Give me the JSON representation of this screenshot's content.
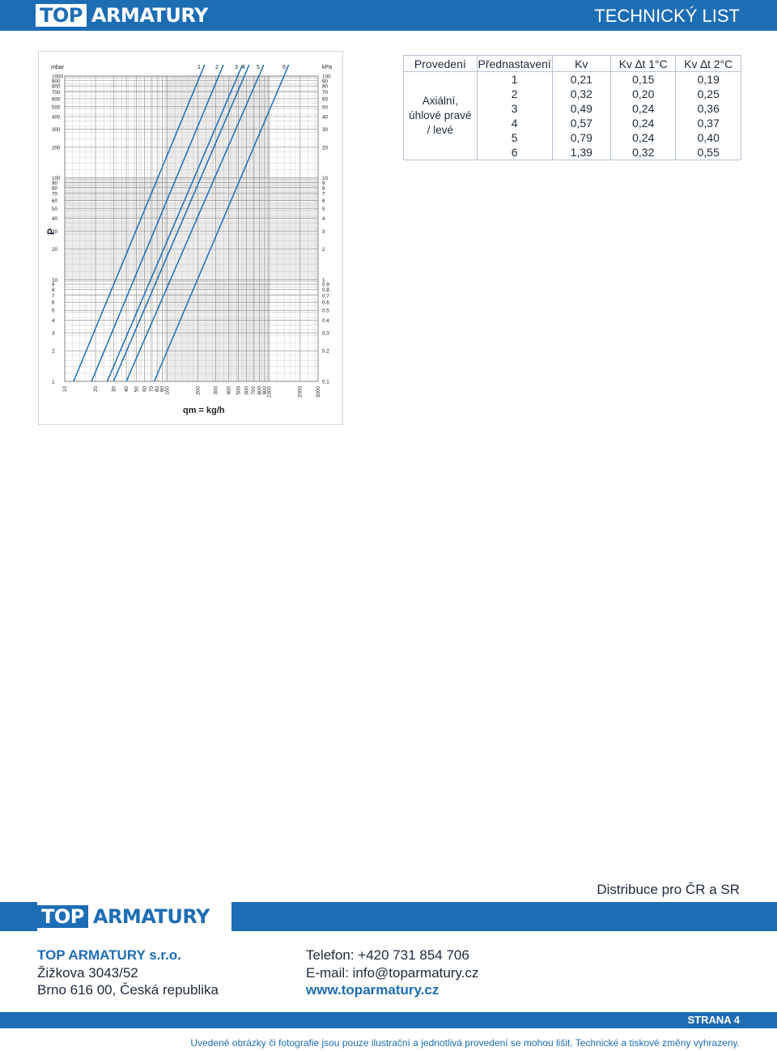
{
  "header": {
    "logo_top": "TOP",
    "logo_armatury": "ARMATURY",
    "title": "TECHNICKÝ LIST"
  },
  "colors": {
    "brand_blue": "#1d6db5",
    "text_dark": "#1e2a3a",
    "curve_blue": "#1d6db5"
  },
  "chart": {
    "left_unit": "mbar",
    "right_unit": "kPa",
    "y_axis_label": "P",
    "x_axis_label": "qm = kg/h",
    "curve_labels": [
      "1",
      "2",
      "3",
      "4",
      "5",
      "6"
    ],
    "left_ticks": [
      "1000",
      "900",
      "800",
      "700",
      "600",
      "500",
      "400",
      "300",
      "200",
      "100",
      "90",
      "80",
      "70",
      "60",
      "50",
      "40",
      "30",
      "20",
      "10",
      "9",
      "8",
      "7",
      "6",
      "5",
      "4",
      "3",
      "2",
      "1"
    ],
    "right_ticks": [
      "100",
      "90",
      "80",
      "70",
      "60",
      "50",
      "40",
      "30",
      "20",
      "10",
      "9",
      "8",
      "7",
      "6",
      "5",
      "4",
      "3",
      "2",
      "1",
      "0.9",
      "0.8",
      "0.7",
      "0.6",
      "0.5",
      "0.4",
      "0.3",
      "0.2",
      "0.1"
    ],
    "x_ticks": [
      "10",
      "20",
      "30",
      "40",
      "50",
      "60",
      "70",
      "80",
      "90",
      "100",
      "200",
      "300",
      "400",
      "500",
      "600",
      "700",
      "800",
      "900",
      "1000",
      "2000",
      "3000"
    ]
  },
  "chart_data": {
    "type": "line",
    "xlabel": "qm = kg/h",
    "ylabel": "P",
    "x_scale": "log",
    "y_scale": "log",
    "xlim": [
      10,
      3000
    ],
    "ylim_mbar": [
      1,
      1000
    ],
    "ylim_kpa": [
      0.1,
      100
    ],
    "grid": true,
    "series": [
      {
        "name": "1",
        "kv": 0.21,
        "points_mbar": [
          [
            12.2,
            1
          ],
          [
            210,
            1000
          ]
        ]
      },
      {
        "name": "2",
        "kv": 0.32,
        "points_mbar": [
          [
            18.3,
            1
          ],
          [
            320,
            1000
          ]
        ]
      },
      {
        "name": "3",
        "kv": 0.49,
        "points_mbar": [
          [
            26,
            1
          ],
          [
            490,
            1000
          ]
        ]
      },
      {
        "name": "4",
        "kv": 0.57,
        "points_mbar": [
          [
            30,
            1
          ],
          [
            570,
            1000
          ]
        ]
      },
      {
        "name": "5",
        "kv": 0.79,
        "points_mbar": [
          [
            40,
            1
          ],
          [
            790,
            1000
          ]
        ]
      },
      {
        "name": "6",
        "kv": 1.39,
        "points_mbar": [
          [
            75,
            1
          ],
          [
            1390,
            1000
          ]
        ]
      }
    ]
  },
  "kv_table": {
    "headers": [
      "Provedení",
      "Přednastavení",
      "Kv",
      "Kv ∆t 1°C",
      "Kv ∆t 2°C"
    ],
    "variant_lines": [
      "Axiální,",
      "úhlové pravé",
      "/ levé"
    ],
    "rows": [
      [
        "1",
        "0,21",
        "0,15",
        "0,19"
      ],
      [
        "2",
        "0,32",
        "0,20",
        "0,25"
      ],
      [
        "3",
        "0,49",
        "0,24",
        "0,36"
      ],
      [
        "4",
        "0,57",
        "0,24",
        "0,37"
      ],
      [
        "5",
        "0,79",
        "0,24",
        "0,40"
      ],
      [
        "6",
        "1,39",
        "0,32",
        "0,55"
      ]
    ]
  },
  "footer": {
    "distribution": "Distribuce pro ČR a SR",
    "logo_top": "TOP",
    "logo_armatury": "ARMATURY",
    "company": "TOP ARMATURY s.r.o.",
    "street": "Žižkova 3043/52",
    "city": "Brno 616 00, Česká republika",
    "phone": "Telefon: +420 731 854 706",
    "email": "E-mail: info@toparmatury.cz",
    "web": "www.toparmatury.cz",
    "page": "STRANA 4",
    "disclaimer": "Uvedené obrázky či fotografie jsou pouze ilustrační a jednotlivá provedení se mohou lišit. Technické a tiskové změny vyhrazeny."
  }
}
